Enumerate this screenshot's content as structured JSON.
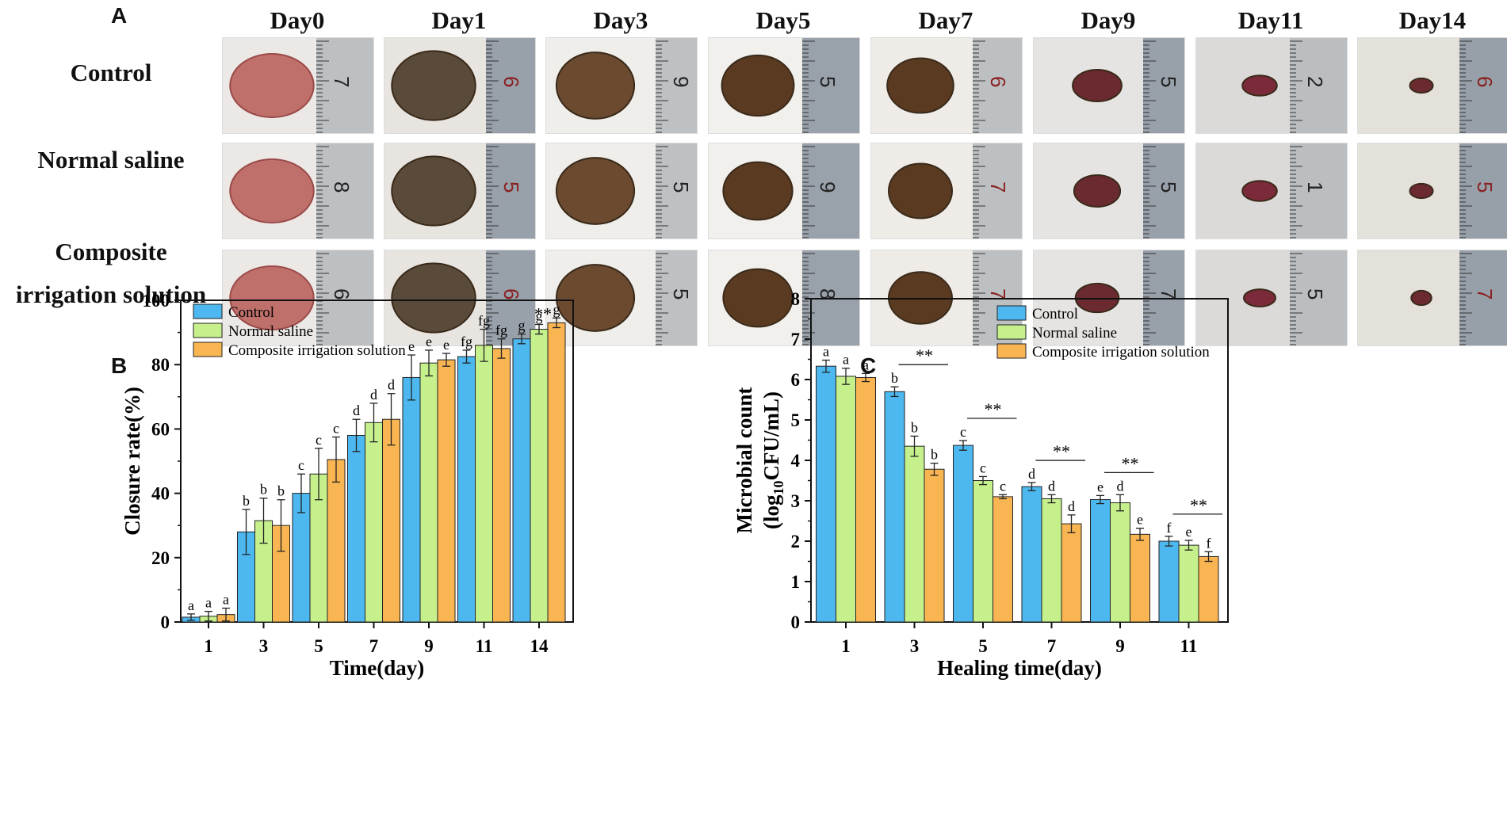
{
  "panel_a": {
    "letter": "A",
    "days": [
      "Day0",
      "Day1",
      "Day3",
      "Day5",
      "Day7",
      "Day9",
      "Day11",
      "Day14"
    ],
    "rows": [
      {
        "label_lines": [
          "Control"
        ]
      },
      {
        "label_lines": [
          "Normal saline"
        ]
      },
      {
        "label_lines": [
          "Composite",
          "irrigation solution"
        ]
      }
    ],
    "ruler_digits": [
      [
        "7",
        "6",
        "9",
        "5",
        "6",
        "5",
        "2",
        "6"
      ],
      [
        "8",
        "5",
        "5",
        "9",
        "7",
        "5",
        "1",
        "5"
      ],
      [
        "6",
        "6",
        "5",
        "8",
        "7",
        "7",
        "5",
        "7"
      ]
    ]
  },
  "colors": {
    "control": "#4DB8F0",
    "saline": "#C6F08C",
    "composite": "#F9B552",
    "edge": "#222222"
  },
  "chart_data": [
    {
      "panel": "B",
      "type": "bar",
      "xlabel": "Time(day)",
      "ylabel": "Closure rate(%)",
      "ylim": [
        0,
        100
      ],
      "yticks": [
        0,
        20,
        40,
        60,
        80,
        100
      ],
      "categories": [
        "1",
        "3",
        "5",
        "7",
        "9",
        "11",
        "14"
      ],
      "series": [
        {
          "name": "Control",
          "values": [
            1.5,
            28,
            40,
            58,
            76,
            82.5,
            88
          ],
          "errors": [
            1,
            7,
            6,
            5,
            7,
            2,
            1.5
          ],
          "letters": [
            "a",
            "b",
            "c",
            "d",
            "e",
            "fg",
            "g"
          ]
        },
        {
          "name": "Normal saline",
          "values": [
            1.8,
            31.5,
            46,
            62,
            80.5,
            86,
            91
          ],
          "errors": [
            1.5,
            7,
            8,
            6,
            4,
            5,
            1.5
          ],
          "letters": [
            "a",
            "b",
            "c",
            "d",
            "e",
            "fg",
            "g"
          ]
        },
        {
          "name": "Composite irrigation solution",
          "values": [
            2.3,
            30,
            50.5,
            63,
            81.5,
            85,
            93
          ],
          "errors": [
            2,
            8,
            7,
            8,
            2,
            3,
            1.5
          ],
          "letters": [
            "a",
            "b",
            "c",
            "d",
            "e",
            "fg",
            "g"
          ]
        }
      ],
      "annotations": [
        {
          "category": "14",
          "text": "**"
        }
      ],
      "legend_position": "top-left"
    },
    {
      "panel": "C",
      "type": "bar",
      "xlabel": "Healing time(day)",
      "ylabel_line1": "Microbial count",
      "ylabel_line2_prefix": "(log",
      "ylabel_line2_sub": "10",
      "ylabel_line2_suffix": "CFU/mL)",
      "ylim": [
        0,
        8
      ],
      "yticks": [
        0,
        1,
        2,
        3,
        4,
        5,
        6,
        7,
        8
      ],
      "categories": [
        "1",
        "3",
        "5",
        "7",
        "9",
        "11"
      ],
      "series": [
        {
          "name": "Control",
          "values": [
            6.33,
            5.7,
            4.37,
            3.35,
            3.03,
            2.0
          ],
          "errors": [
            0.15,
            0.12,
            0.12,
            0.1,
            0.1,
            0.12
          ],
          "letters": [
            "a",
            "b",
            "c",
            "d",
            "e",
            "f"
          ]
        },
        {
          "name": "Normal saline",
          "values": [
            6.08,
            4.35,
            3.5,
            3.05,
            2.95,
            1.9
          ],
          "errors": [
            0.2,
            0.25,
            0.1,
            0.1,
            0.2,
            0.12
          ],
          "letters": [
            "a",
            "b",
            "c",
            "d",
            "d",
            "e"
          ]
        },
        {
          "name": "Composite irrigation solution",
          "values": [
            6.05,
            3.78,
            3.1,
            2.43,
            2.17,
            1.62
          ],
          "errors": [
            0.1,
            0.15,
            0.05,
            0.22,
            0.15,
            0.12
          ],
          "letters": [
            "a",
            "b",
            "c",
            "d",
            "e",
            "f"
          ]
        }
      ],
      "significance": [
        {
          "category": "3",
          "text": "**"
        },
        {
          "category": "5",
          "text": "**"
        },
        {
          "category": "7",
          "text": "**"
        },
        {
          "category": "9",
          "text": "**"
        },
        {
          "category": "11",
          "text": "**"
        }
      ],
      "legend_position": "top-right"
    }
  ]
}
